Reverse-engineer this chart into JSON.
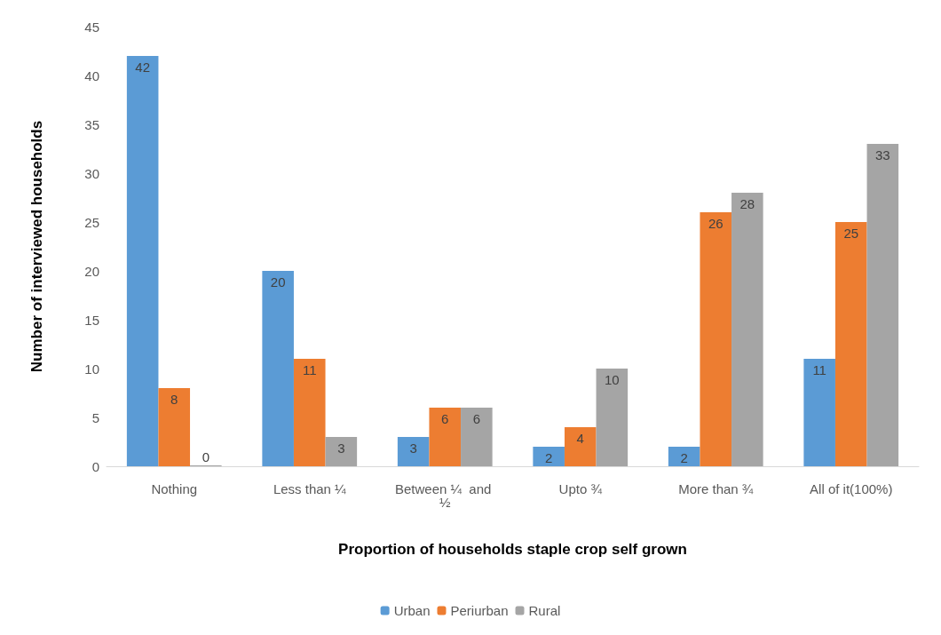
{
  "chart_data": {
    "type": "bar",
    "xlabel": "Proportion of households staple crop self grown",
    "ylabel": "Number of interviewed households",
    "categories": [
      "Nothing",
      "Less than ¼",
      "Between ¼  and ½",
      "Upto ¾",
      "More than ¾",
      "All of it(100%)"
    ],
    "series": [
      {
        "name": "Urban",
        "color": "#5b9bd5",
        "values": [
          42,
          20,
          3,
          2,
          2,
          11
        ]
      },
      {
        "name": "Periurban",
        "color": "#ed7d31",
        "values": [
          8,
          11,
          6,
          4,
          26,
          25
        ]
      },
      {
        "name": "Rural",
        "color": "#a5a5a5",
        "values": [
          0,
          3,
          6,
          10,
          28,
          33
        ]
      }
    ],
    "ylim": [
      0,
      45
    ],
    "yticks": [
      0,
      5,
      10,
      15,
      20,
      25,
      30,
      35,
      40,
      45
    ],
    "data_labels": true,
    "legend": "bottom",
    "grid": false
  }
}
